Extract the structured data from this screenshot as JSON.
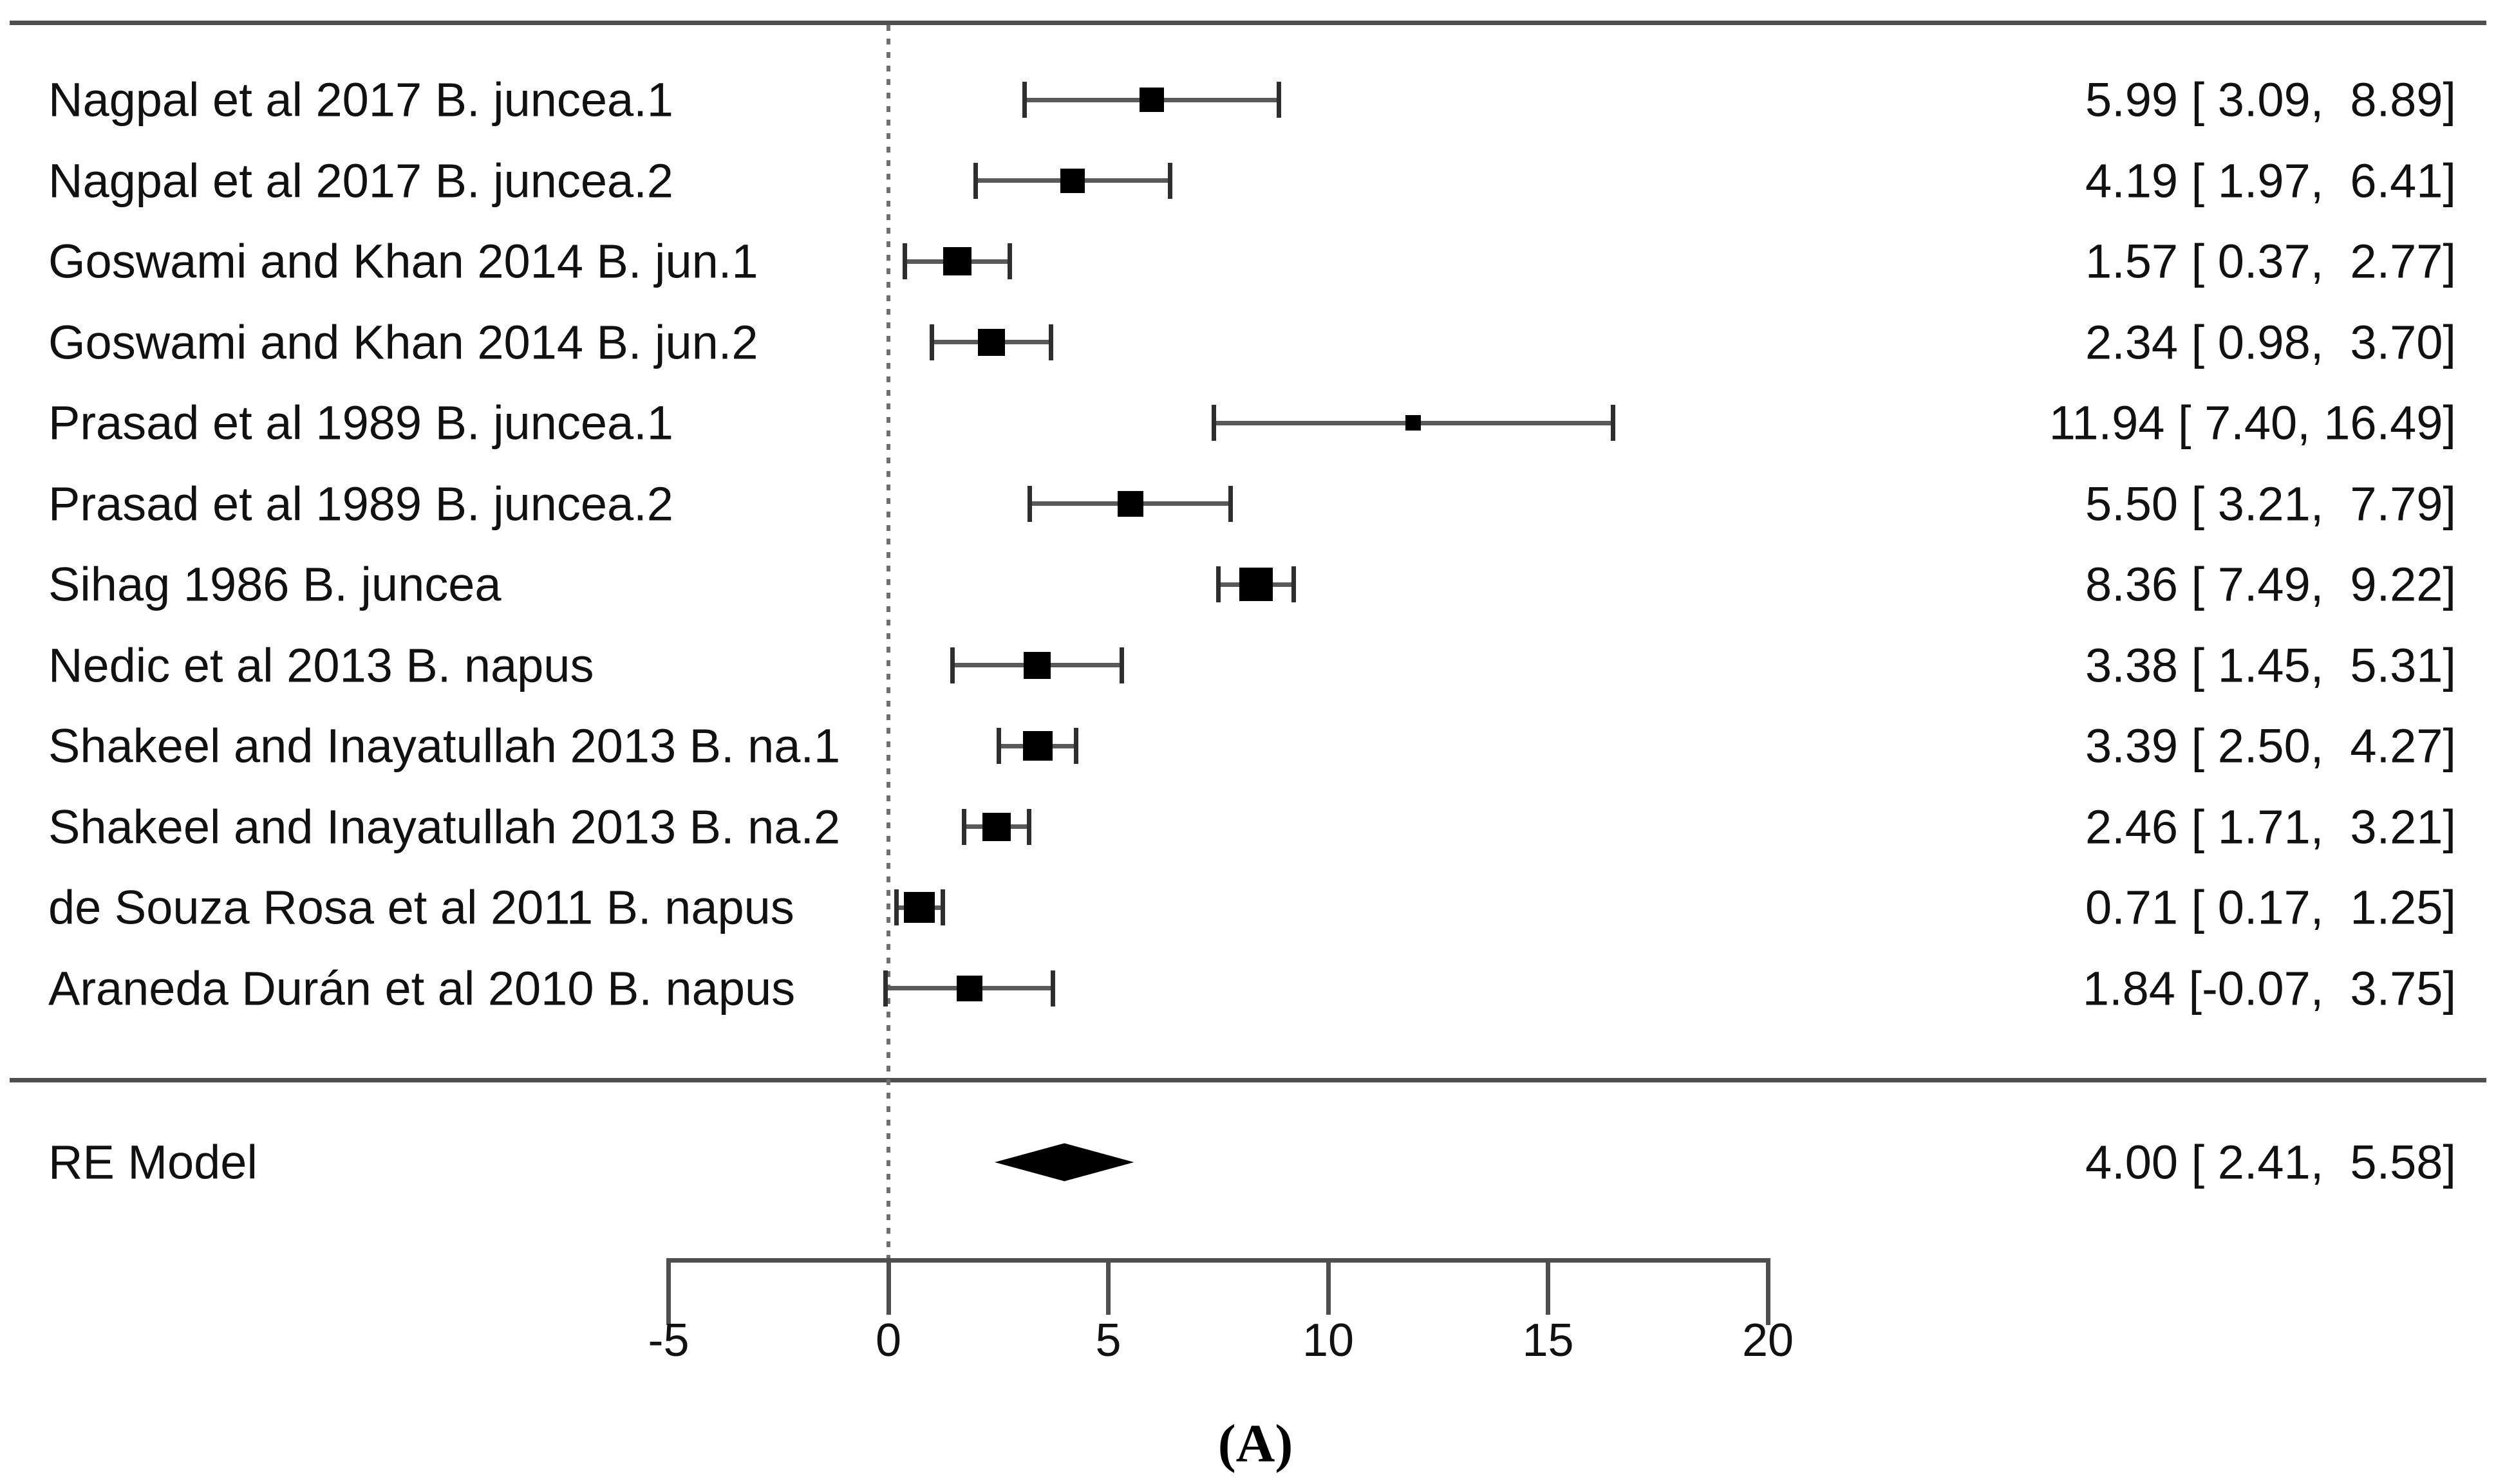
{
  "figure": {
    "panel_label": "(A)"
  },
  "chart_data": {
    "type": "forest",
    "title": "",
    "xlabel": "",
    "x_axis": {
      "range": [
        -5,
        20
      ],
      "ticks": [
        -5,
        0,
        5,
        10,
        15,
        20
      ],
      "tick_labels": [
        "-5",
        "0",
        "5",
        "10",
        "15",
        "20"
      ],
      "zero_reference_line": 0,
      "grid": "off",
      "legend": "none"
    },
    "studies": [
      {
        "label": "Nagpal et al 2017 B. juncea.1",
        "estimate": 5.99,
        "ci_lower": 3.09,
        "ci_upper": 8.89,
        "display": "5.99 [ 3.09,  8.89]"
      },
      {
        "label": "Nagpal et al 2017 B. juncea.2",
        "estimate": 4.19,
        "ci_lower": 1.97,
        "ci_upper": 6.41,
        "display": "4.19 [ 1.97,  6.41]"
      },
      {
        "label": "Goswami and Khan 2014 B. jun.1",
        "estimate": 1.57,
        "ci_lower": 0.37,
        "ci_upper": 2.77,
        "display": "1.57 [ 0.37,  2.77]"
      },
      {
        "label": "Goswami and Khan 2014 B. jun.2",
        "estimate": 2.34,
        "ci_lower": 0.98,
        "ci_upper": 3.7,
        "display": "2.34 [ 0.98,  3.70]"
      },
      {
        "label": "Prasad et al 1989 B. juncea.1",
        "estimate": 11.94,
        "ci_lower": 7.4,
        "ci_upper": 16.49,
        "display": "11.94 [ 7.40, 16.49]"
      },
      {
        "label": "Prasad et al 1989 B. juncea.2",
        "estimate": 5.5,
        "ci_lower": 3.21,
        "ci_upper": 7.79,
        "display": "5.50 [ 3.21,  7.79]"
      },
      {
        "label": "Sihag 1986 B. juncea",
        "estimate": 8.36,
        "ci_lower": 7.49,
        "ci_upper": 9.22,
        "display": "8.36 [ 7.49,  9.22]"
      },
      {
        "label": "Nedic et al 2013 B. napus",
        "estimate": 3.38,
        "ci_lower": 1.45,
        "ci_upper": 5.31,
        "display": "3.38 [ 1.45,  5.31]"
      },
      {
        "label": "Shakeel and Inayatullah 2013 B. na.1",
        "estimate": 3.39,
        "ci_lower": 2.5,
        "ci_upper": 4.27,
        "display": "3.39 [ 2.50,  4.27]"
      },
      {
        "label": "Shakeel and Inayatullah 2013 B. na.2",
        "estimate": 2.46,
        "ci_lower": 1.71,
        "ci_upper": 3.21,
        "display": "2.46 [ 1.71,  3.21]"
      },
      {
        "label": "de Souza Rosa et al 2011 B. napus",
        "estimate": 0.71,
        "ci_lower": 0.17,
        "ci_upper": 1.25,
        "display": "0.71 [ 0.17,  1.25]"
      },
      {
        "label": "Araneda Durán et al 2010 B. napus",
        "estimate": 1.84,
        "ci_lower": -0.07,
        "ci_upper": 3.75,
        "display": "1.84 [-0.07,  3.75]"
      }
    ],
    "summary": {
      "label": "RE Model",
      "estimate": 4.0,
      "ci_lower": 2.41,
      "ci_upper": 5.58,
      "display": "4.00 [ 2.41,  5.58]"
    },
    "layout_hints": {
      "marker_sizes_px": [
        38,
        38,
        44,
        42,
        24,
        40,
        52,
        42,
        46,
        44,
        48,
        40
      ],
      "marker_shape": "square",
      "summary_shape": "diamond"
    }
  }
}
